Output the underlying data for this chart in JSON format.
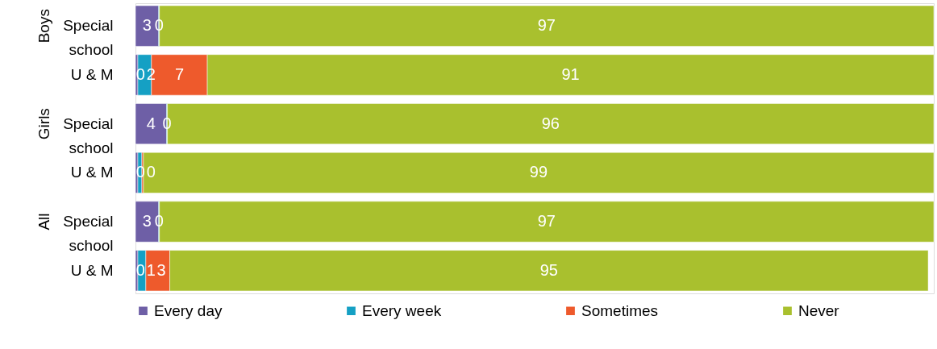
{
  "chart_data": {
    "type": "bar",
    "orientation": "horizontal",
    "stacked": true,
    "categories": [
      "Special school",
      "U & M",
      "Special school",
      "U & M",
      "Special school",
      "U & M"
    ],
    "annotations": [
      "Boys",
      "Girls",
      "All"
    ],
    "xlim": [
      0,
      100
    ],
    "series": [
      {
        "name": "Every day",
        "color": "#6e5fa6",
        "values": [
          2.9,
          0.3,
          3.9,
          0.3,
          2.9,
          0.3
        ],
        "value_labels": [
          "3",
          "0",
          "4",
          "0",
          "3",
          "0"
        ]
      },
      {
        "name": "Every week",
        "color": "#15a0c4",
        "values": [
          0.1,
          1.7,
          0.1,
          0.5,
          0.1,
          1
        ],
        "value_labels": [
          "0",
          "2",
          "0",
          null,
          "0",
          "1"
        ]
      },
      {
        "name": "Sometimes",
        "color": "#ee5a2c",
        "values": [
          0,
          7,
          0,
          0.2,
          0,
          3
        ],
        "value_labels": [
          null,
          "7",
          null,
          "0",
          null,
          "3"
        ]
      },
      {
        "name": "Never",
        "color": "#a9c02e",
        "values": [
          97,
          91,
          96,
          99,
          97,
          95
        ],
        "value_labels": [
          "97",
          "91",
          "96",
          "99",
          "97",
          "95"
        ]
      }
    ],
    "legend": "bottom",
    "grid": false
  }
}
